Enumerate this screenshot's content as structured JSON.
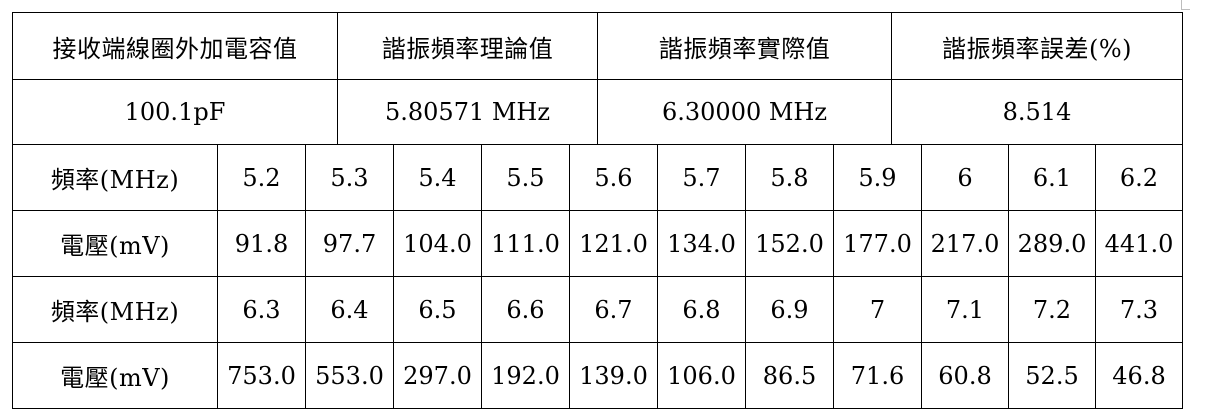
{
  "header": [
    "接收端線圈外加電容值",
    "諧振頻率理論值",
    "諧振頻率實際值",
    "諧振頻率誤差(%)"
  ],
  "summary": [
    "100.1pF",
    "5.80571 MHz",
    "6.30000 MHz",
    "8.514"
  ],
  "rows": [
    {
      "label": "頻率(MHz)",
      "values": [
        "5.2",
        "5.3",
        "5.4",
        "5.5",
        "5.6",
        "5.7",
        "5.8",
        "5.9",
        "6",
        "6.1",
        "6.2"
      ]
    },
    {
      "label": "電壓(mV)",
      "values": [
        "91.8",
        "97.7",
        "104.0",
        "111.0",
        "121.0",
        "134.0",
        "152.0",
        "177.0",
        "217.0",
        "289.0",
        "441.0"
      ]
    },
    {
      "label": "頻率(MHz)",
      "values": [
        "6.3",
        "6.4",
        "6.5",
        "6.6",
        "6.7",
        "6.8",
        "6.9",
        "7",
        "7.1",
        "7.2",
        "7.3"
      ]
    },
    {
      "label": "電壓(mV)",
      "values": [
        "753.0",
        "553.0",
        "297.0",
        "192.0",
        "139.0",
        "106.0",
        "86.5",
        "71.6",
        "60.8",
        "52.5",
        "46.8"
      ]
    }
  ]
}
